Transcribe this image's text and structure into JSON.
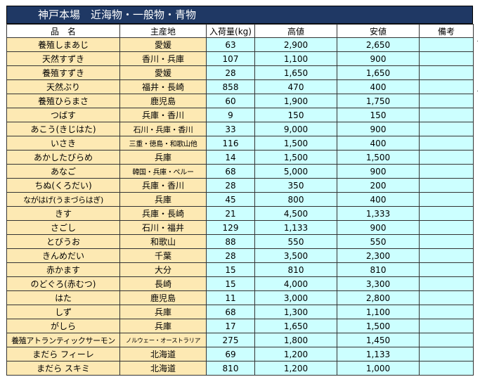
{
  "title": "神戸本場　近海物・一般物・青物",
  "headers": {
    "name": "品　名",
    "origin": "主産地",
    "qty": "入荷量(kg)",
    "high": "高値",
    "low": "安値",
    "note": "備考"
  },
  "rows": [
    {
      "name": "養殖しまあじ",
      "origin": "愛媛",
      "qty": "63",
      "high": "2,900",
      "low": "2,650",
      "note": ""
    },
    {
      "name": "天然すずき",
      "origin": "香川・兵庫",
      "qty": "107",
      "high": "1,100",
      "low": "900",
      "note": ""
    },
    {
      "name": "養殖すずき",
      "origin": "愛媛",
      "qty": "28",
      "high": "1,650",
      "low": "1,650",
      "note": ""
    },
    {
      "name": "天然ぶり",
      "origin": "福井・長崎",
      "qty": "858",
      "high": "470",
      "low": "400",
      "note": ""
    },
    {
      "name": "養殖ひらまさ",
      "origin": "鹿児島",
      "qty": "60",
      "high": "1,900",
      "low": "1,750",
      "note": ""
    },
    {
      "name": "つばす",
      "origin": "兵庫・香川",
      "qty": "9",
      "high": "150",
      "low": "150",
      "note": ""
    },
    {
      "name": "あこう(きじはた)",
      "origin": "石川・兵庫・香川",
      "qty": "33",
      "high": "9,000",
      "low": "900",
      "note": ""
    },
    {
      "name": "いさき",
      "origin": "三重・徳島・和歌山他",
      "qty": "116",
      "high": "1,500",
      "low": "400",
      "note": ""
    },
    {
      "name": "あかしたびらめ",
      "origin": "兵庫",
      "qty": "14",
      "high": "1,500",
      "low": "1,500",
      "note": ""
    },
    {
      "name": "あなご",
      "origin": "韓国・兵庫・ペルー",
      "qty": "68",
      "high": "5,000",
      "low": "900",
      "note": ""
    },
    {
      "name": "ちぬ(くろだい)",
      "origin": "兵庫・香川",
      "qty": "28",
      "high": "350",
      "low": "200",
      "note": ""
    },
    {
      "name": "ながはげ(うまづらはぎ)",
      "origin": "兵庫",
      "qty": "45",
      "high": "800",
      "low": "400",
      "note": ""
    },
    {
      "name": "きす",
      "origin": "兵庫・長崎",
      "qty": "21",
      "high": "4,500",
      "low": "1,333",
      "note": ""
    },
    {
      "name": "さごし",
      "origin": "石川・福井",
      "qty": "129",
      "high": "1,133",
      "low": "900",
      "note": ""
    },
    {
      "name": "とびうお",
      "origin": "和歌山",
      "qty": "88",
      "high": "550",
      "low": "550",
      "note": ""
    },
    {
      "name": "きんめだい",
      "origin": "千葉",
      "qty": "28",
      "high": "3,500",
      "low": "2,300",
      "note": ""
    },
    {
      "name": "赤かます",
      "origin": "大分",
      "qty": "15",
      "high": "810",
      "low": "810",
      "note": ""
    },
    {
      "name": "のどぐろ(赤むつ)",
      "origin": "長崎",
      "qty": "15",
      "high": "4,000",
      "low": "3,300",
      "note": ""
    },
    {
      "name": "はた",
      "origin": "鹿児島",
      "qty": "11",
      "high": "3,000",
      "low": "2,800",
      "note": ""
    },
    {
      "name": "しず",
      "origin": "兵庫",
      "qty": "68",
      "high": "1,300",
      "low": "1,100",
      "note": ""
    },
    {
      "name": "がしら",
      "origin": "兵庫",
      "qty": "17",
      "high": "1,650",
      "low": "1,500",
      "note": ""
    },
    {
      "name": "養殖アトランティックサーモン",
      "origin": "ノルウェー・オーストラリア",
      "qty": "275",
      "high": "1,800",
      "low": "1,450",
      "note": ""
    },
    {
      "name": "まだら フィーレ",
      "origin": "北海道",
      "qty": "69",
      "high": "1,200",
      "low": "1,133",
      "note": ""
    },
    {
      "name": "まだら スキミ",
      "origin": "北海道",
      "qty": "810",
      "high": "1,200",
      "low": "1,000",
      "note": ""
    }
  ]
}
